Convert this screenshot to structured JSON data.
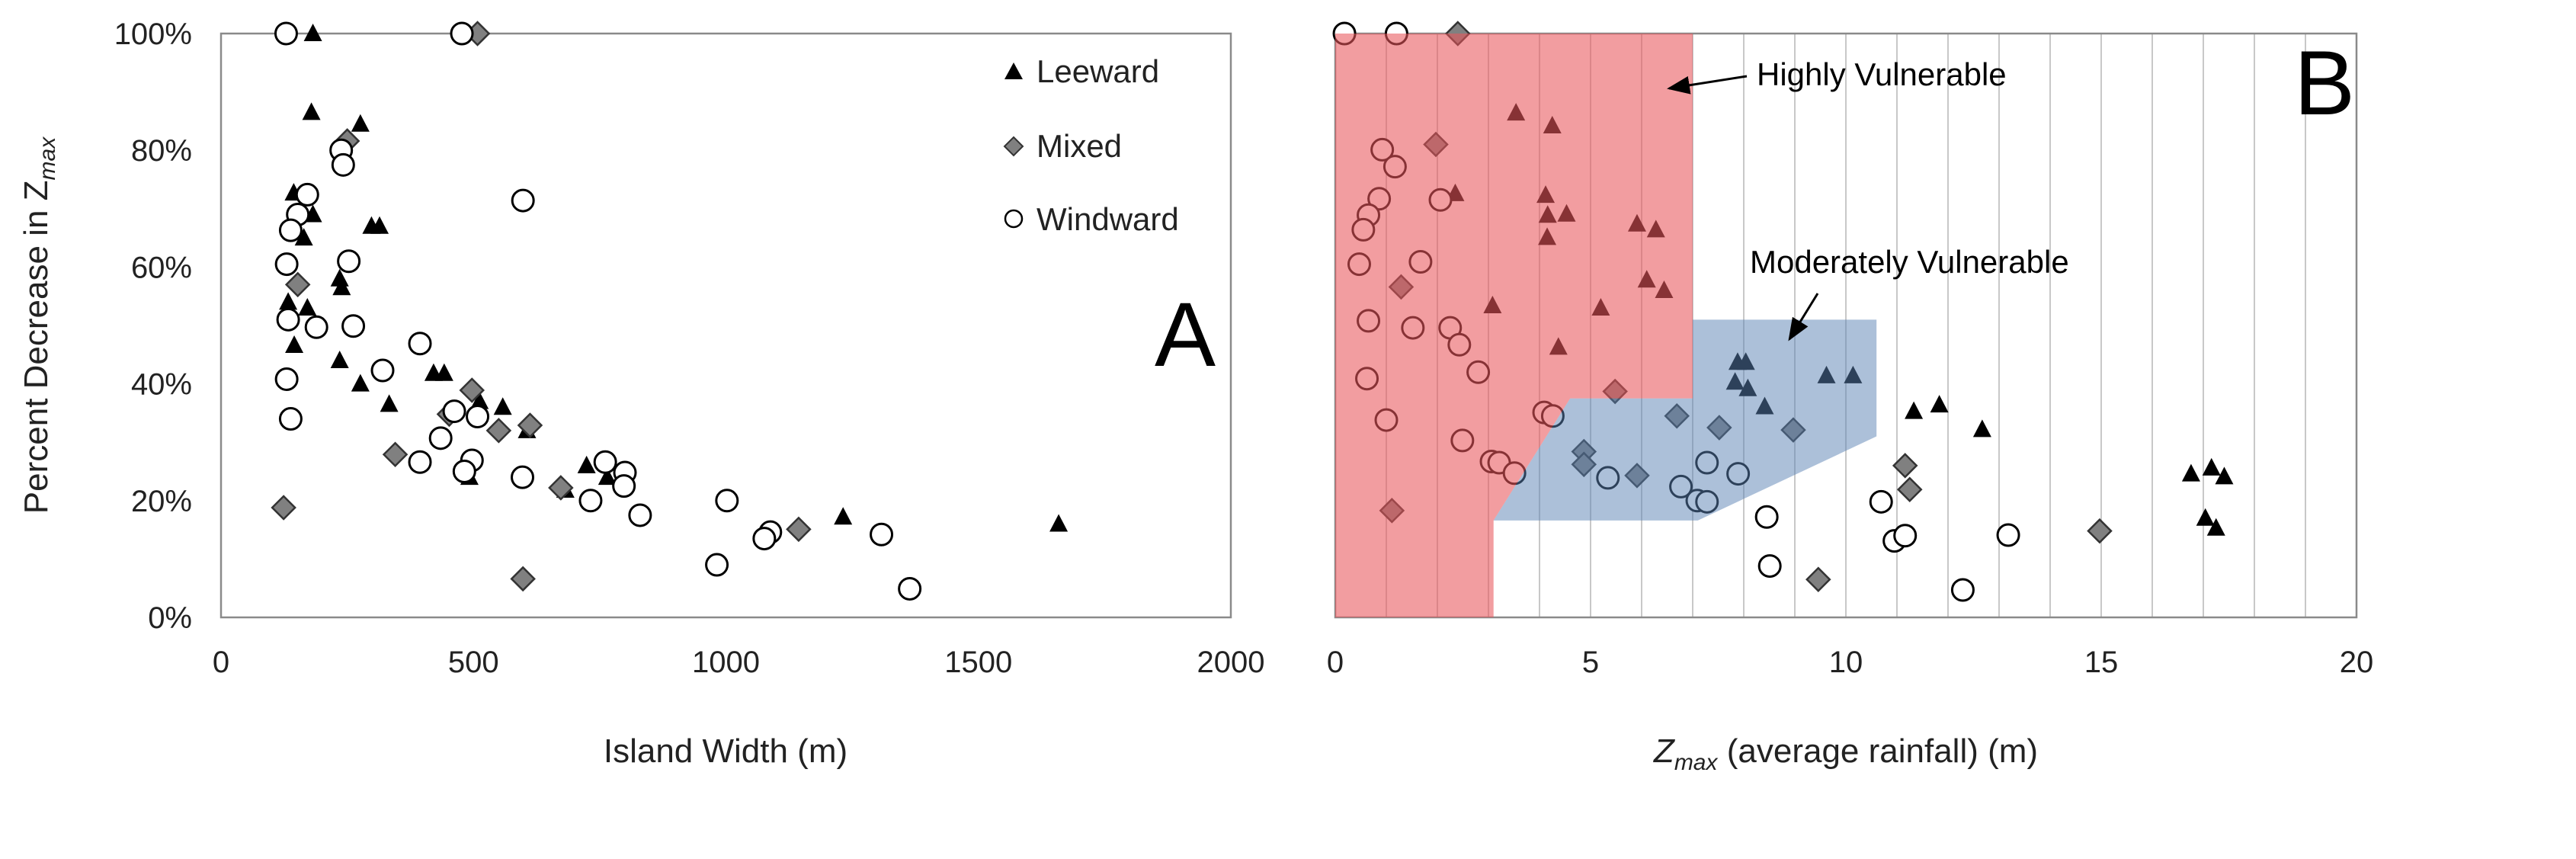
{
  "chart_data": [
    {
      "panel": "A",
      "type": "scatter",
      "panel_label": "A",
      "xlabel": "Island Width (m)",
      "ylabel": "Percent Decrease in Z",
      "ylabel_sub": "max",
      "xlim": [
        0,
        2000
      ],
      "ylim": [
        0,
        100
      ],
      "xticks": [
        0,
        500,
        1000,
        1500,
        2000
      ],
      "yticks": [
        "0%",
        "20%",
        "40%",
        "60%",
        "80%",
        "100%"
      ],
      "grid": false,
      "legend": {
        "placement": "top-right",
        "entries": [
          "Leeward",
          "Mixed",
          "Windward"
        ]
      },
      "series": [
        {
          "name": "Leeward",
          "marker": "triangle",
          "points": [
            [
              182,
              100
            ],
            [
              179,
              86.5
            ],
            [
              276,
              84.5
            ],
            [
              144,
              72.7
            ],
            [
              182,
              69
            ],
            [
              164,
              65
            ],
            [
              298,
              67
            ],
            [
              314,
              67
            ],
            [
              235,
              58
            ],
            [
              239,
              56.5
            ],
            [
              133,
              54
            ],
            [
              171,
              53
            ],
            [
              145,
              46.6
            ],
            [
              235,
              44
            ],
            [
              276,
              40
            ],
            [
              333,
              36.5
            ],
            [
              421,
              41.8
            ],
            [
              442,
              41.8
            ],
            [
              512,
              37
            ],
            [
              558,
              36
            ],
            [
              606,
              32
            ],
            [
              724,
              26
            ],
            [
              765,
              24
            ],
            [
              492,
              24
            ],
            [
              682,
              21.8
            ],
            [
              1232,
              17.2
            ],
            [
              1659,
              16
            ]
          ]
        },
        {
          "name": "Mixed",
          "marker": "diamond",
          "points": [
            [
              508,
              100
            ],
            [
              250,
              81.6
            ],
            [
              152,
              57
            ],
            [
              124,
              18.8
            ],
            [
              345,
              27.9
            ],
            [
              497,
              38.9
            ],
            [
              452,
              34.8
            ],
            [
              550,
              32
            ],
            [
              612,
              32.9
            ],
            [
              673,
              22.2
            ],
            [
              1144,
              15.1
            ],
            [
              598,
              6.6
            ]
          ]
        },
        {
          "name": "Windward",
          "marker": "circle",
          "points": [
            [
              129,
              100
            ],
            [
              477,
              100
            ],
            [
              238,
              80
            ],
            [
              242,
              77.5
            ],
            [
              171,
              72.4
            ],
            [
              152,
              69
            ],
            [
              138,
              66.3
            ],
            [
              253,
              61
            ],
            [
              130,
              60.5
            ],
            [
              598,
              71.4
            ],
            [
              133,
              51
            ],
            [
              189,
              49.7
            ],
            [
              262,
              49.9
            ],
            [
              394,
              46.9
            ],
            [
              320,
              42.3
            ],
            [
              130,
              40.8
            ],
            [
              138,
              34
            ],
            [
              462,
              35.3
            ],
            [
              508,
              34.4
            ],
            [
              435,
              30.7
            ],
            [
              394,
              26.6
            ],
            [
              497,
              26.9
            ],
            [
              482,
              25
            ],
            [
              597,
              24
            ],
            [
              761,
              26.6
            ],
            [
              800,
              24.8
            ],
            [
              798,
              22.5
            ],
            [
              732,
              20
            ],
            [
              830,
              17.5
            ],
            [
              1002,
              20
            ],
            [
              1088,
              14.6
            ],
            [
              1076,
              13.5
            ],
            [
              982,
              9
            ],
            [
              1308,
              14.2
            ],
            [
              1364,
              4.9
            ]
          ]
        }
      ]
    },
    {
      "panel": "B",
      "type": "scatter",
      "panel_label": "B",
      "xlabel_main": "Z",
      "xlabel_sub": "max",
      "xlabel_rest": " (average rainfall) (m)",
      "xlim": [
        0,
        20
      ],
      "ylim": [
        0,
        100
      ],
      "xticks": [
        0,
        5,
        10,
        15,
        20
      ],
      "grid": "vertical every 1 m",
      "regions": [
        {
          "name": "Highly Vulnerable",
          "color": "#e8575b",
          "polygon": [
            [
              0,
              100
            ],
            [
              7,
              100
            ],
            [
              7,
              37.5
            ],
            [
              4.6,
              37.5
            ],
            [
              3.1,
              16.6
            ],
            [
              3.1,
              0
            ],
            [
              0,
              0
            ]
          ]
        },
        {
          "name": "Moderately Vulnerable",
          "color": "#5a82b4",
          "polygon": [
            [
              7,
              51
            ],
            [
              10.6,
              51
            ],
            [
              10.6,
              31
            ],
            [
              7.1,
              16.6
            ],
            [
              3.1,
              16.6
            ],
            [
              4.6,
              37.5
            ],
            [
              7,
              37.5
            ]
          ]
        }
      ],
      "annotations": [
        "Highly Vulnerable",
        "Moderately Vulnerable"
      ],
      "series": [
        {
          "name": "Leeward",
          "marker": "triangle",
          "points": [
            [
              3.54,
              86.4
            ],
            [
              4.25,
              84.2
            ],
            [
              2.35,
              72.6
            ],
            [
              4.12,
              72.3
            ],
            [
              4.16,
              68.9
            ],
            [
              4.53,
              69.1
            ],
            [
              4.15,
              65.1
            ],
            [
              5.91,
              67.4
            ],
            [
              6.28,
              66.4
            ],
            [
              6.1,
              57.8
            ],
            [
              6.44,
              56
            ],
            [
              3.08,
              53.4
            ],
            [
              5.2,
              53
            ],
            [
              4.37,
              46.3
            ],
            [
              7.88,
              43.7
            ],
            [
              8.04,
              43.7
            ],
            [
              7.83,
              40.3
            ],
            [
              8.08,
              39.2
            ],
            [
              9.62,
              41.4
            ],
            [
              10.14,
              41.4
            ],
            [
              8.41,
              36.1
            ],
            [
              11.33,
              35.3
            ],
            [
              11.83,
              36.4
            ],
            [
              12.67,
              32.2
            ],
            [
              16.76,
              24.6
            ],
            [
              17.16,
              25.6
            ],
            [
              17.41,
              24.1
            ],
            [
              17.04,
              17
            ],
            [
              17.25,
              15.3
            ]
          ]
        },
        {
          "name": "Mixed",
          "marker": "diamond",
          "points": [
            [
              2.4,
              100
            ],
            [
              1.97,
              81
            ],
            [
              1.29,
              56.6
            ],
            [
              1.11,
              18.3
            ],
            [
              5.48,
              38.7
            ],
            [
              6.69,
              34.5
            ],
            [
              7.52,
              32.5
            ],
            [
              8.97,
              32.1
            ],
            [
              4.87,
              28.4
            ],
            [
              4.87,
              26.2
            ],
            [
              5.91,
              24.3
            ],
            [
              11.16,
              26
            ],
            [
              11.25,
              21.9
            ],
            [
              14.97,
              14.8
            ],
            [
              9.46,
              6.5
            ]
          ]
        },
        {
          "name": "Windward",
          "marker": "circle",
          "points": [
            [
              0.18,
              100
            ],
            [
              1.2,
              100
            ],
            [
              0.92,
              80.1
            ],
            [
              1.17,
              77.2
            ],
            [
              0.86,
              71.7
            ],
            [
              2.06,
              71.5
            ],
            [
              0.65,
              68.9
            ],
            [
              0.55,
              66.4
            ],
            [
              0.47,
              60.5
            ],
            [
              1.67,
              60.9
            ],
            [
              0.65,
              50.8
            ],
            [
              1.52,
              49.6
            ],
            [
              2.25,
              49.6
            ],
            [
              2.43,
              46.7
            ],
            [
              2.8,
              42
            ],
            [
              0.62,
              40.9
            ],
            [
              4.09,
              35.1
            ],
            [
              4.26,
              34.5
            ],
            [
              1.0,
              33.8
            ],
            [
              2.49,
              30.3
            ],
            [
              3.06,
              26.7
            ],
            [
              3.21,
              26.5
            ],
            [
              3.51,
              24.7
            ],
            [
              5.34,
              23.9
            ],
            [
              7.28,
              26.5
            ],
            [
              7.89,
              24.6
            ],
            [
              6.77,
              22.4
            ],
            [
              7.09,
              20
            ],
            [
              7.28,
              19.8
            ],
            [
              10.69,
              19.8
            ],
            [
              8.45,
              17.2
            ],
            [
              10.95,
              13.1
            ],
            [
              11.16,
              14
            ],
            [
              13.18,
              14.1
            ],
            [
              8.51,
              8.8
            ],
            [
              12.29,
              4.7
            ]
          ]
        }
      ]
    }
  ],
  "colors": {
    "leeward": "#000000",
    "mixed": "#808080",
    "windward": "#ffffff"
  }
}
